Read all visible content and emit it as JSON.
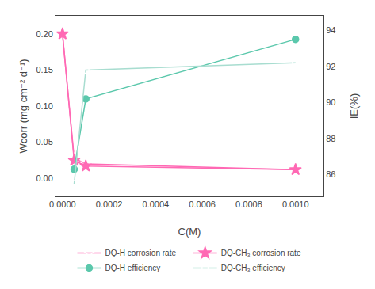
{
  "chart_data": {
    "type": "line",
    "xlabel": "C(M)",
    "ylabel": "Wcorr (mg cm⁻² d⁻¹)",
    "y2label": "IE(%)",
    "xlim": [
      -3e-05,
      0.00112
    ],
    "xticks": [
      {
        "value": 0.0,
        "label": "0.0000"
      },
      {
        "value": 0.0002,
        "label": "0.0002"
      },
      {
        "value": 0.0004,
        "label": "0.0004"
      },
      {
        "value": 0.0006,
        "label": "0.0006"
      },
      {
        "value": 0.0008,
        "label": "0.0008"
      },
      {
        "value": 0.001,
        "label": "0.0010"
      }
    ],
    "ylim": [
      -0.025,
      0.225
    ],
    "yticks": [
      {
        "value": 0.0,
        "label": "0.00"
      },
      0.05,
      {
        "value": 0.1,
        "label": "0.10"
      },
      0.15,
      {
        "value": 0.2,
        "label": "0.20"
      }
    ],
    "y2lim": [
      84.8,
      94.8
    ],
    "y2ticks": [
      86,
      88,
      90,
      92,
      94
    ],
    "grid": false,
    "legend": "bottom",
    "series": [
      {
        "name": "DQ-H corrosion rate",
        "color": "#FF69B4",
        "marker": "star-open",
        "line_style": "solid",
        "x": [
          0,
          5e-05,
          0.0001,
          0.001
        ],
        "values": [
          0.2,
          0.028,
          0.02,
          0.012
        ]
      },
      {
        "name": "DQ-CH₃ corrosion rate",
        "color": "#FF69B4",
        "marker": "star",
        "line_style": "solid",
        "x": [
          0,
          5e-05,
          0.0001,
          0.001
        ],
        "values": [
          0.2,
          0.025,
          0.017,
          0.012
        ]
      },
      {
        "name": "DQ-H efficiency",
        "color": "#5BC8AC",
        "marker": "circle",
        "line_style": "solid",
        "axis": "y2",
        "x": [
          5e-05,
          0.0001,
          0.001
        ],
        "values": [
          86.3,
          90.2,
          93.5
        ]
      },
      {
        "name": "DQ-CH₃ efficiency",
        "color": "#A8DDD0",
        "marker": "circle-open",
        "line_style": "solid",
        "axis": "y2",
        "x": [
          5e-05,
          0.0001,
          0.001
        ],
        "values": [
          85.5,
          91.8,
          92.2
        ]
      }
    ]
  }
}
